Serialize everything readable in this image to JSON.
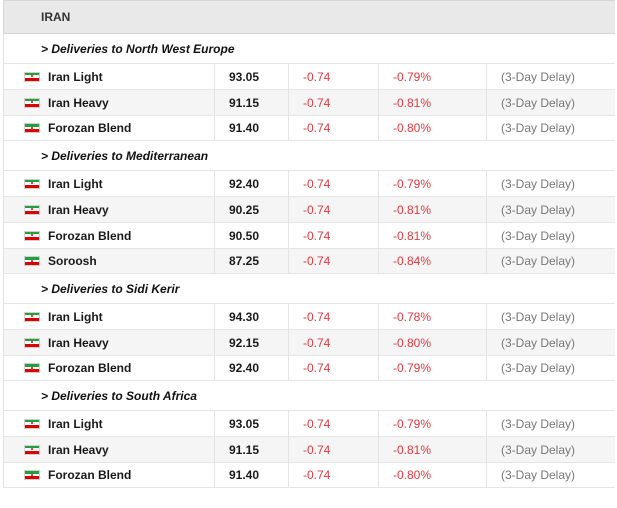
{
  "header": {
    "title": "IRAN"
  },
  "colors": {
    "negative": "#e0383e",
    "flag_green": "#239f40",
    "flag_white": "#ffffff",
    "flag_red": "#da0000"
  },
  "icons": {
    "flag": "iran-flag-icon"
  },
  "sections": [
    {
      "title": "> Deliveries to North West Europe",
      "rows": [
        {
          "name": "Iran Light",
          "price": "93.05",
          "change": "-0.74",
          "pct": "-0.79%",
          "delay": "(3-Day Delay)"
        },
        {
          "name": "Iran Heavy",
          "price": "91.15",
          "change": "-0.74",
          "pct": "-0.81%",
          "delay": "(3-Day Delay)"
        },
        {
          "name": "Forozan Blend",
          "price": "91.40",
          "change": "-0.74",
          "pct": "-0.80%",
          "delay": "(3-Day Delay)"
        }
      ]
    },
    {
      "title": "> Deliveries to Mediterranean",
      "rows": [
        {
          "name": "Iran Light",
          "price": "92.40",
          "change": "-0.74",
          "pct": "-0.79%",
          "delay": "(3-Day Delay)"
        },
        {
          "name": "Iran Heavy",
          "price": "90.25",
          "change": "-0.74",
          "pct": "-0.81%",
          "delay": "(3-Day Delay)"
        },
        {
          "name": "Forozan Blend",
          "price": "90.50",
          "change": "-0.74",
          "pct": "-0.81%",
          "delay": "(3-Day Delay)"
        },
        {
          "name": "Soroosh",
          "price": "87.25",
          "change": "-0.74",
          "pct": "-0.84%",
          "delay": "(3-Day Delay)"
        }
      ]
    },
    {
      "title": "> Deliveries to Sidi Kerir",
      "rows": [
        {
          "name": "Iran Light",
          "price": "94.30",
          "change": "-0.74",
          "pct": "-0.78%",
          "delay": "(3-Day Delay)"
        },
        {
          "name": "Iran Heavy",
          "price": "92.15",
          "change": "-0.74",
          "pct": "-0.80%",
          "delay": "(3-Day Delay)"
        },
        {
          "name": "Forozan Blend",
          "price": "92.40",
          "change": "-0.74",
          "pct": "-0.79%",
          "delay": "(3-Day Delay)"
        }
      ]
    },
    {
      "title": "> Deliveries to South Africa",
      "rows": [
        {
          "name": "Iran Light",
          "price": "93.05",
          "change": "-0.74",
          "pct": "-0.79%",
          "delay": "(3-Day Delay)"
        },
        {
          "name": "Iran Heavy",
          "price": "91.15",
          "change": "-0.74",
          "pct": "-0.81%",
          "delay": "(3-Day Delay)"
        },
        {
          "name": "Forozan Blend",
          "price": "91.40",
          "change": "-0.74",
          "pct": "-0.80%",
          "delay": "(3-Day Delay)"
        }
      ]
    }
  ]
}
